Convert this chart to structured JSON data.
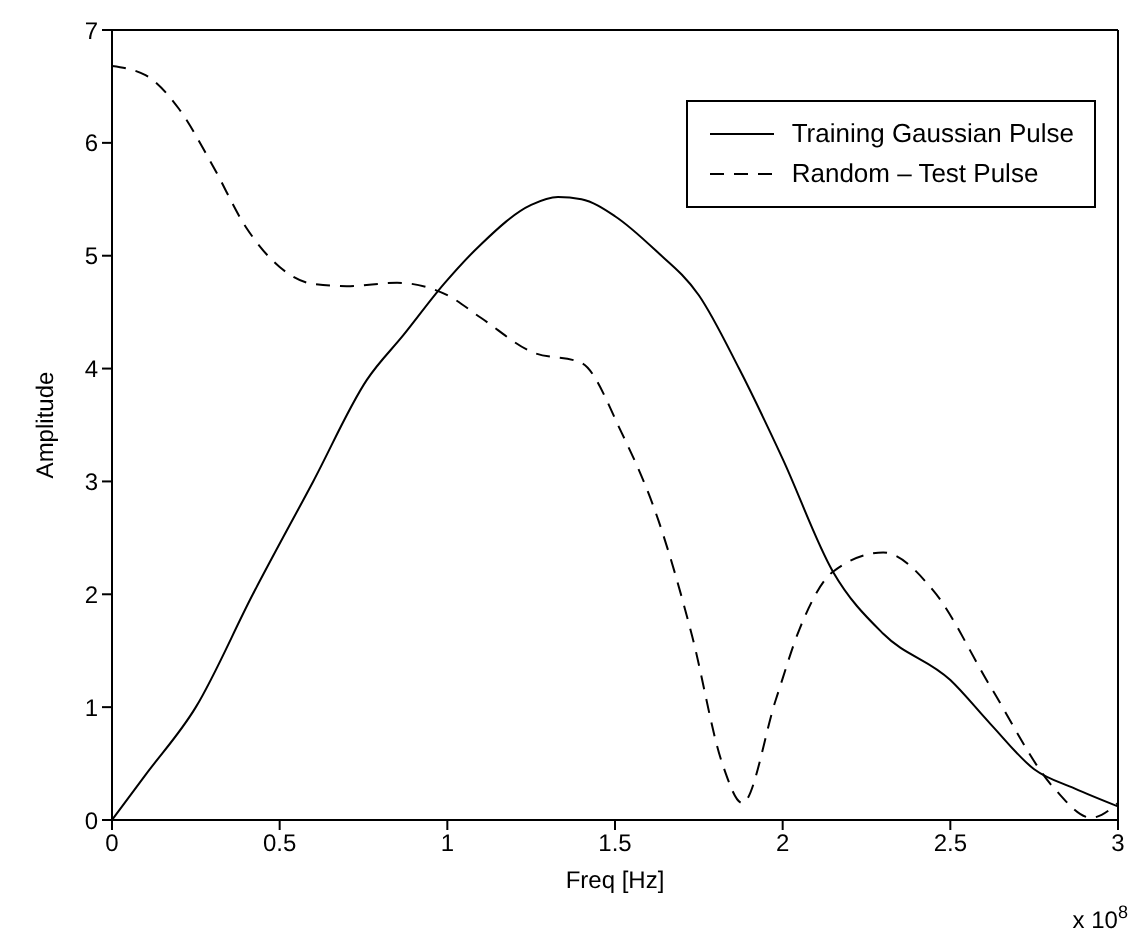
{
  "chart_data": {
    "type": "line",
    "xlabel": "Freq [Hz]",
    "ylabel": "Amplitude",
    "annotations": [
      "x 10$^{8}$"
    ],
    "xlim": [
      0,
      3
    ],
    "ylim": [
      0,
      7
    ],
    "xticks": [
      0,
      0.5,
      1,
      1.5,
      2,
      2.5,
      3
    ],
    "yticks": [
      0,
      1,
      2,
      3,
      4,
      5,
      6,
      7
    ],
    "grid": false,
    "legend": "top right",
    "marker": "none",
    "series": [
      {
        "name": "Training Gaussian Pulse",
        "color": "#000000",
        "line_style": "solid",
        "x": [
          0,
          0.1,
          0.25,
          0.42,
          0.6,
          0.76,
          0.87,
          0.99,
          1.1,
          1.25,
          1.33,
          1.4,
          1.5,
          1.62,
          1.75,
          1.87,
          2,
          2.15,
          2.3,
          2.5,
          2.62,
          2.75,
          2.87,
          3
        ],
        "values": [
          0,
          0.4,
          1,
          2,
          3,
          3.9,
          4.3,
          4.75,
          5.1,
          5.45,
          5.52,
          5.5,
          5.35,
          5.05,
          4.65,
          4.0,
          3.2,
          2.2,
          1.65,
          1.24,
          0.85,
          0.45,
          0.28,
          0.12
        ]
      },
      {
        "name": "Random – Test Pulse",
        "color": "#000000",
        "line_style": "dashed",
        "x": [
          0,
          0.1,
          0.2,
          0.3,
          0.4,
          0.5,
          0.6,
          0.7,
          0.85,
          1,
          1.1,
          1.25,
          1.4,
          1.52,
          1.63,
          1.73,
          1.82,
          1.88,
          1.98,
          2.05,
          2.15,
          2.3,
          2.45,
          2.62,
          2.81,
          2.92,
          3
        ],
        "values": [
          6.68,
          6.6,
          6.3,
          5.8,
          5.25,
          4.9,
          4.75,
          4.73,
          4.76,
          4.65,
          4.45,
          4.15,
          4.05,
          3.43,
          2.65,
          1.63,
          0.5,
          0.15,
          1.07,
          1.69,
          2.2,
          2.37,
          2.03,
          1.18,
          0.28,
          0.02,
          0.15
        ]
      }
    ]
  }
}
